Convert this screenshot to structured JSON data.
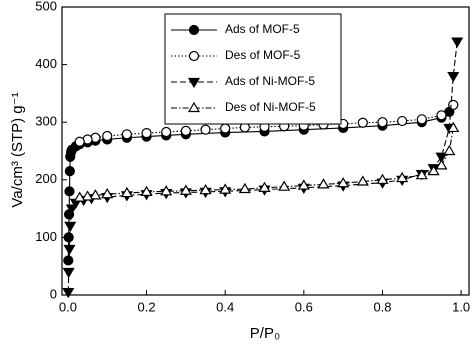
{
  "chart_data": {
    "type": "line",
    "xlabel": "P/P₀",
    "ylabel": "Va/cm³ (STP) g⁻¹",
    "xlim": [
      -0.015,
      1.02
    ],
    "ylim": [
      0,
      500
    ],
    "xticks": [
      {
        "value": 0,
        "label": "0.0"
      },
      0.2,
      0.4,
      0.6,
      0.8,
      {
        "value": 1,
        "label": "1.0"
      }
    ],
    "yticks": [
      0,
      100,
      200,
      300,
      400,
      500
    ],
    "legend": "upper center",
    "series": [
      {
        "name": "Ads of MOF-5",
        "color": "#000000",
        "marker": "circle",
        "filled": true,
        "dash": "solid",
        "x": [
          0.001,
          0.002,
          0.003,
          0.004,
          0.005,
          0.006,
          0.008,
          0.01,
          0.02,
          0.03,
          0.05,
          0.07,
          0.1,
          0.15,
          0.2,
          0.25,
          0.3,
          0.4,
          0.5,
          0.6,
          0.7,
          0.8,
          0.9,
          0.95,
          0.97,
          0.98
        ],
        "values": [
          60,
          100,
          140,
          180,
          215,
          240,
          248,
          252,
          258,
          262,
          265,
          268,
          270,
          273,
          275,
          277,
          279,
          282,
          284,
          287,
          290,
          294,
          300,
          308,
          318,
          330
        ]
      },
      {
        "name": "Des of MOF-5",
        "color": "#000000",
        "marker": "circle",
        "filled": false,
        "dash": "dotted",
        "x": [
          0.98,
          0.95,
          0.9,
          0.85,
          0.8,
          0.75,
          0.7,
          0.65,
          0.6,
          0.55,
          0.5,
          0.45,
          0.4,
          0.35,
          0.3,
          0.25,
          0.2,
          0.15,
          0.1,
          0.07,
          0.05,
          0.03
        ],
        "values": [
          330,
          312,
          305,
          302,
          300,
          299,
          297,
          296,
          294,
          293,
          292,
          291,
          289,
          287,
          285,
          283,
          281,
          279,
          276,
          273,
          270,
          266
        ]
      },
      {
        "name": "Ads of Ni-MOF-5",
        "color": "#000000",
        "marker": "triangle-down",
        "filled": true,
        "dash": "dashed",
        "x": [
          0.001,
          0.002,
          0.004,
          0.006,
          0.01,
          0.02,
          0.04,
          0.06,
          0.1,
          0.15,
          0.2,
          0.25,
          0.3,
          0.35,
          0.4,
          0.5,
          0.6,
          0.7,
          0.8,
          0.85,
          0.9,
          0.93,
          0.95,
          0.97,
          0.98,
          0.99
        ],
        "values": [
          5,
          40,
          80,
          120,
          150,
          160,
          165,
          168,
          170,
          173,
          175,
          177,
          178,
          179,
          180,
          183,
          186,
          190,
          195,
          200,
          210,
          220,
          240,
          290,
          380,
          440
        ]
      },
      {
        "name": "Des of Ni-MOF-5",
        "color": "#000000",
        "marker": "triangle-up",
        "filled": false,
        "dash": "dashdot",
        "x": [
          0.98,
          0.97,
          0.95,
          0.93,
          0.9,
          0.85,
          0.8,
          0.75,
          0.7,
          0.65,
          0.6,
          0.55,
          0.5,
          0.45,
          0.4,
          0.35,
          0.3,
          0.25,
          0.2,
          0.15,
          0.1,
          0.07,
          0.05,
          0.03
        ],
        "values": [
          290,
          250,
          225,
          215,
          208,
          203,
          200,
          197,
          194,
          192,
          190,
          188,
          186,
          184,
          183,
          182,
          181,
          180,
          179,
          177,
          175,
          173,
          171,
          169
        ]
      }
    ]
  }
}
